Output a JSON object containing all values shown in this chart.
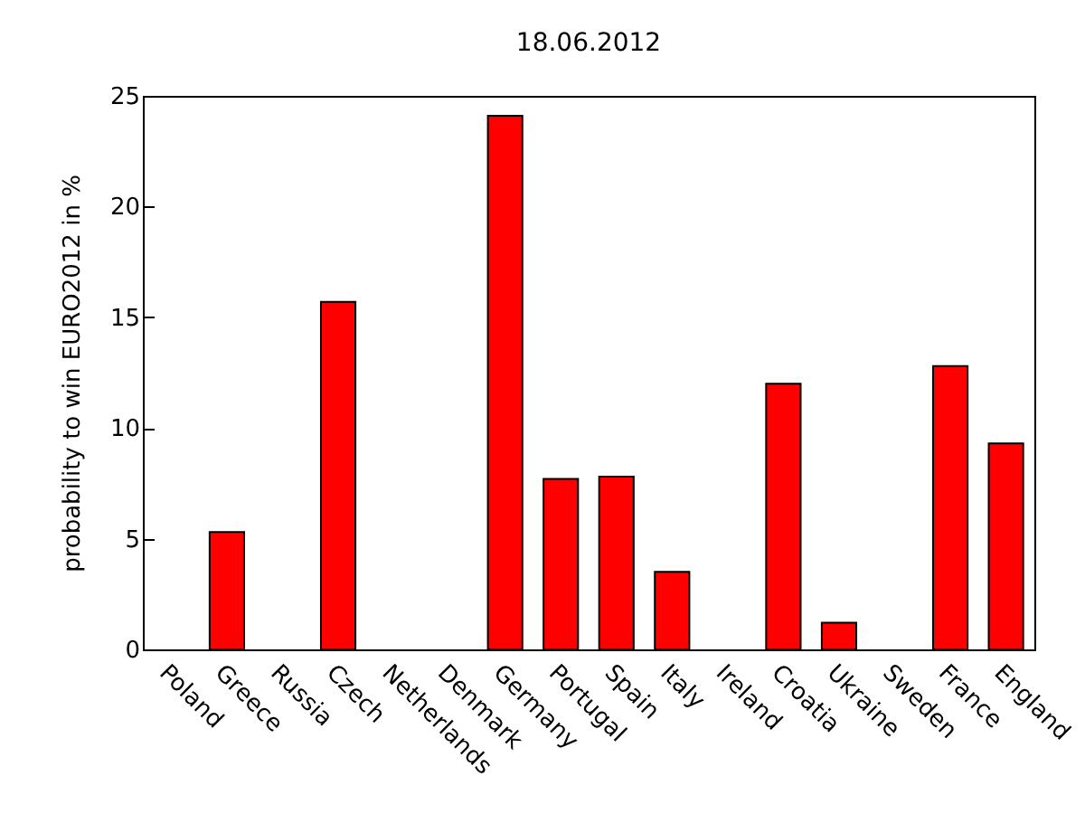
{
  "chart_data": {
    "type": "bar",
    "title": "18.06.2012",
    "ylabel": "probability to win EURO2012 in %",
    "categories": [
      "Poland",
      "Greece",
      "Russia",
      "Czech",
      "Netherlands",
      "Denmark",
      "Germany",
      "Portugal",
      "Spain",
      "Italy",
      "Ireland",
      "Croatia",
      "Ukraine",
      "Sweden",
      "France",
      "England"
    ],
    "values": [
      0,
      5.3,
      0,
      15.7,
      0,
      0,
      24.1,
      7.7,
      7.8,
      3.5,
      0,
      12.0,
      1.2,
      0,
      12.8,
      9.3
    ],
    "color": "#ff0000",
    "ylim": [
      0,
      25
    ],
    "yticks": [
      0,
      5,
      10,
      15,
      20,
      25
    ],
    "grid": false
  }
}
